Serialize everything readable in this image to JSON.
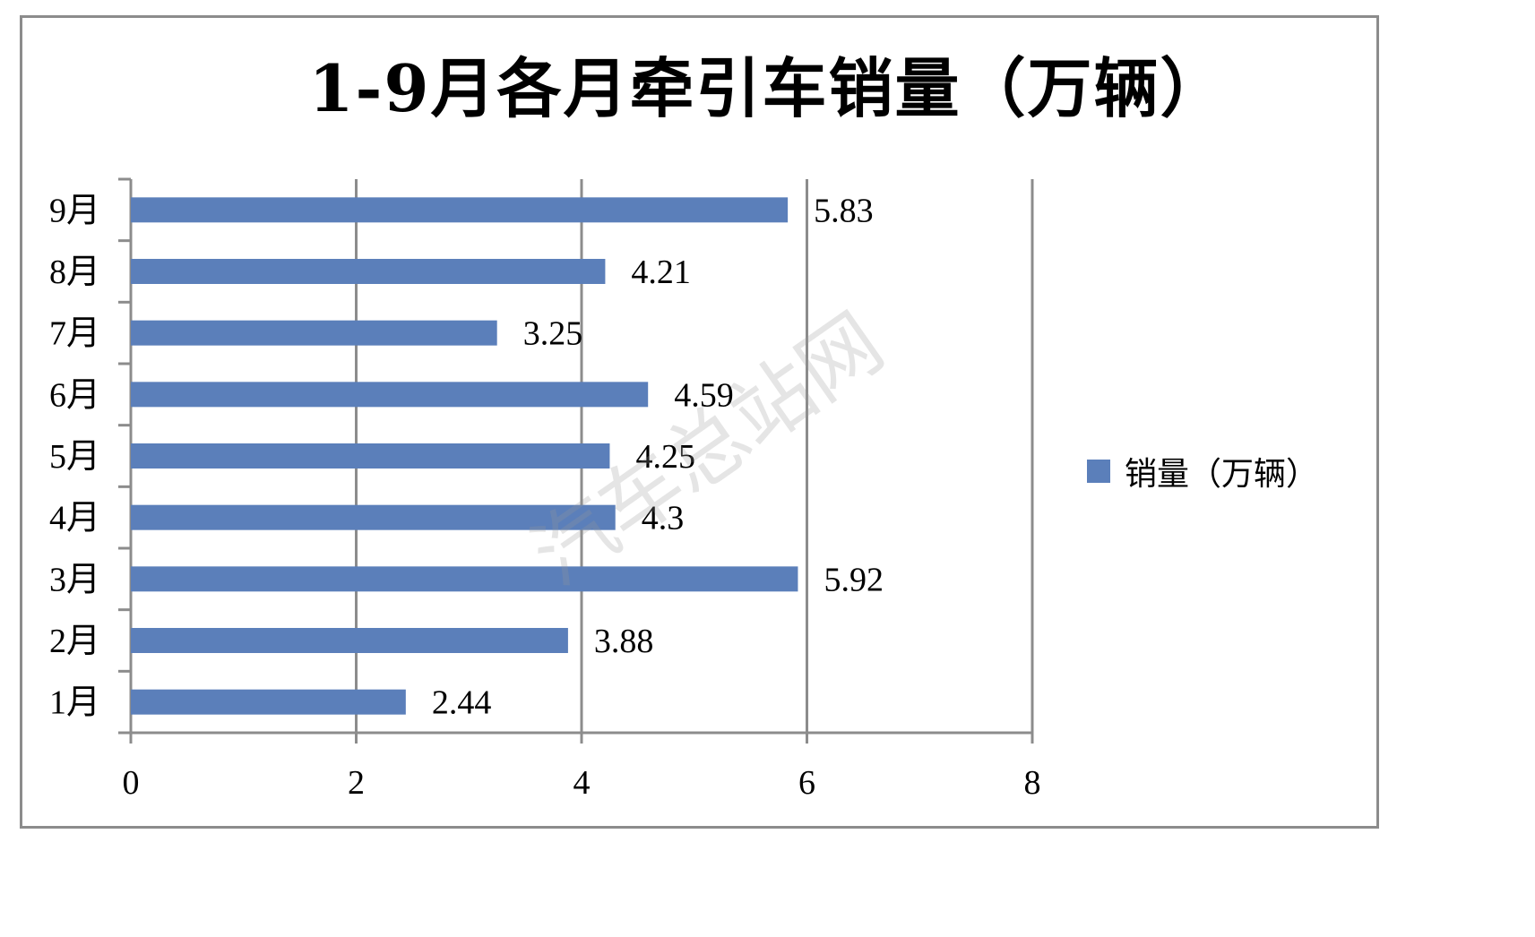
{
  "chart_data": {
    "type": "bar",
    "orientation": "horizontal",
    "title": "1-9月各月牵引车销量（万辆）",
    "categories": [
      "1月",
      "2月",
      "3月",
      "4月",
      "5月",
      "6月",
      "7月",
      "8月",
      "9月"
    ],
    "series": [
      {
        "name": "销量（万辆）",
        "values": [
          2.44,
          3.88,
          5.92,
          4.3,
          4.25,
          4.59,
          3.25,
          4.21,
          5.83
        ],
        "labels": [
          "2.44",
          "3.88",
          "5.92",
          "4.3",
          "4.25",
          "4.59",
          "3.25",
          "4.21",
          "5.83"
        ],
        "color": "#5b7fba"
      }
    ],
    "xlim": [
      0,
      8
    ],
    "xticks": [
      "0",
      "2",
      "4",
      "6",
      "8"
    ],
    "grid": "vertical major gridlines",
    "legend_position": "right"
  },
  "watermark": "汽车总站网",
  "colors": {
    "bar": "#5b7fba",
    "axis": "#8c8c8c",
    "grid": "#8c8c8c"
  }
}
